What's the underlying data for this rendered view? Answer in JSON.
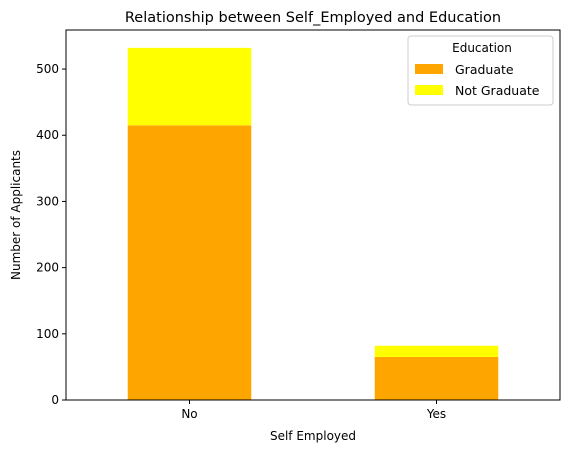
{
  "chart_data": {
    "type": "bar",
    "stacked": true,
    "title": "Relationship between Self_Employed and Education",
    "xlabel": "Self Employed",
    "ylabel": "Number of Applicants",
    "categories": [
      "No",
      "Yes"
    ],
    "series": [
      {
        "name": "Graduate",
        "color": "#ffa500",
        "values": [
          415,
          65
        ]
      },
      {
        "name": "Not Graduate",
        "color": "#ffff00",
        "values": [
          117,
          17
        ]
      }
    ],
    "ylim": [
      0,
      559
    ],
    "yticks": [
      0,
      100,
      200,
      300,
      400,
      500
    ],
    "grid": false,
    "legend": {
      "title": "Education",
      "position": "top-right"
    }
  }
}
